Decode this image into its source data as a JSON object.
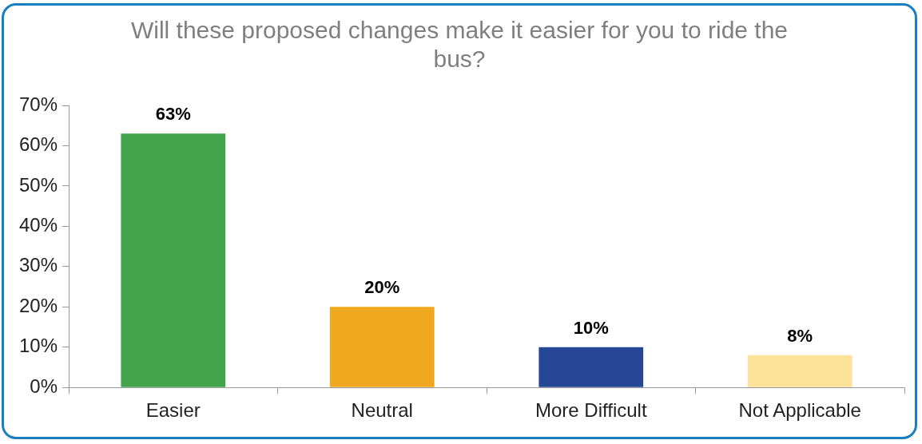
{
  "chart_data": {
    "type": "bar",
    "title": "Will these proposed changes make it easier for you to ride the bus?",
    "categories": [
      "Easier",
      "Neutral",
      "More Difficult",
      "Not Applicable"
    ],
    "values": [
      63,
      20,
      10,
      8
    ],
    "colors": [
      "#43a34a",
      "#f0a820",
      "#264796",
      "#fde39a"
    ],
    "value_labels": [
      "63%",
      "20%",
      "10%",
      "8%"
    ],
    "ylim": [
      0,
      70
    ],
    "yticks": [
      {
        "value": 0,
        "label": "0%"
      },
      {
        "value": 10,
        "label": "10%"
      },
      {
        "value": 20,
        "label": "20%"
      },
      {
        "value": 30,
        "label": "30%"
      },
      {
        "value": 40,
        "label": "40%"
      },
      {
        "value": 50,
        "label": "50%"
      },
      {
        "value": 60,
        "label": "60%"
      },
      {
        "value": 70,
        "label": "70%"
      }
    ],
    "grid": false,
    "legend": false
  }
}
